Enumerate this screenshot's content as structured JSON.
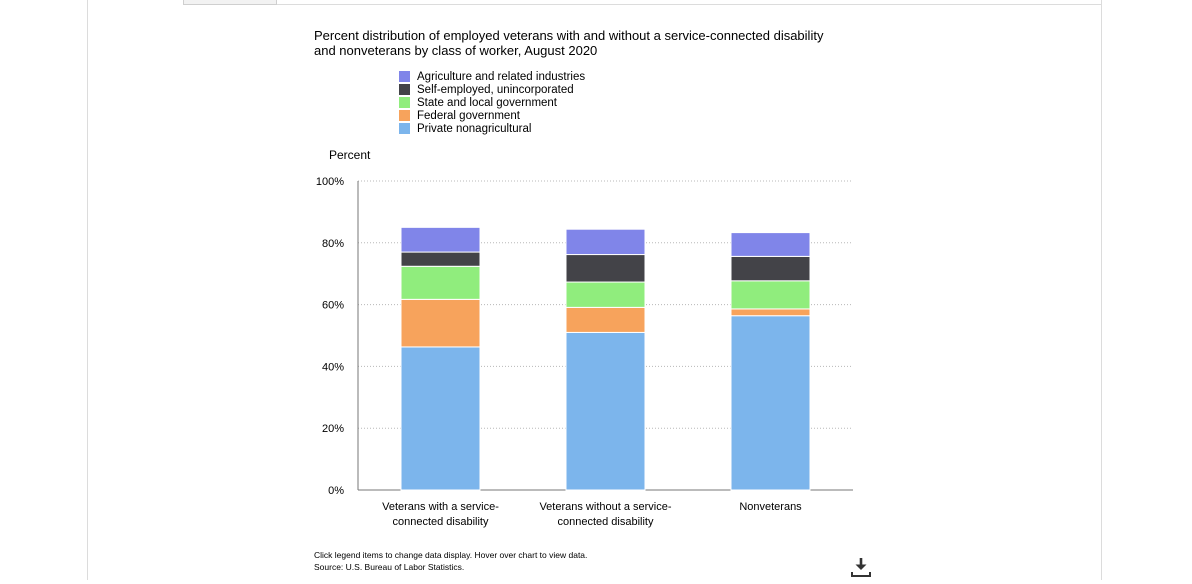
{
  "chart_data": {
    "type": "bar",
    "stacked": true,
    "title": "Percent distribution of employed veterans with and without a service-connected disability and nonveterans by class of worker, August 2020",
    "ylabel": "Percent",
    "xlabel": "",
    "ylim": [
      0,
      100
    ],
    "y_ticks": [
      "0%",
      "20%",
      "40%",
      "60%",
      "80%",
      "100%"
    ],
    "grid": true,
    "legend_position": "top",
    "categories": [
      "Veterans with a service-connected disability",
      "Veterans without a service-connected disability",
      "Nonveterans"
    ],
    "category_lines": [
      [
        "Veterans with a service-",
        "connected disability"
      ],
      [
        "Veterans without a service-",
        "connected disability"
      ],
      [
        "Nonveterans"
      ]
    ],
    "series": [
      {
        "name": "Private nonagricultural",
        "color": "#7cb5ec",
        "values": [
          46.3,
          51.0,
          56.4
        ]
      },
      {
        "name": "Federal government",
        "color": "#f7a35c",
        "values": [
          15.4,
          8.1,
          2.2
        ]
      },
      {
        "name": "State and local government",
        "color": "#90ed7d",
        "values": [
          10.7,
          8.2,
          9.1
        ]
      },
      {
        "name": "Self-employed, unincorporated",
        "color": "#434348",
        "values": [
          4.6,
          8.9,
          7.9
        ]
      },
      {
        "name": "Agriculture and related industries",
        "color": "#8085e9",
        "values": [
          8.0,
          8.2,
          7.7
        ]
      }
    ]
  },
  "notes": {
    "line1": "Click legend items to change data display. Hover over chart to view data.",
    "line2": "Source: U.S. Bureau of Labor Statistics."
  },
  "icons": {
    "download": "download-icon"
  }
}
